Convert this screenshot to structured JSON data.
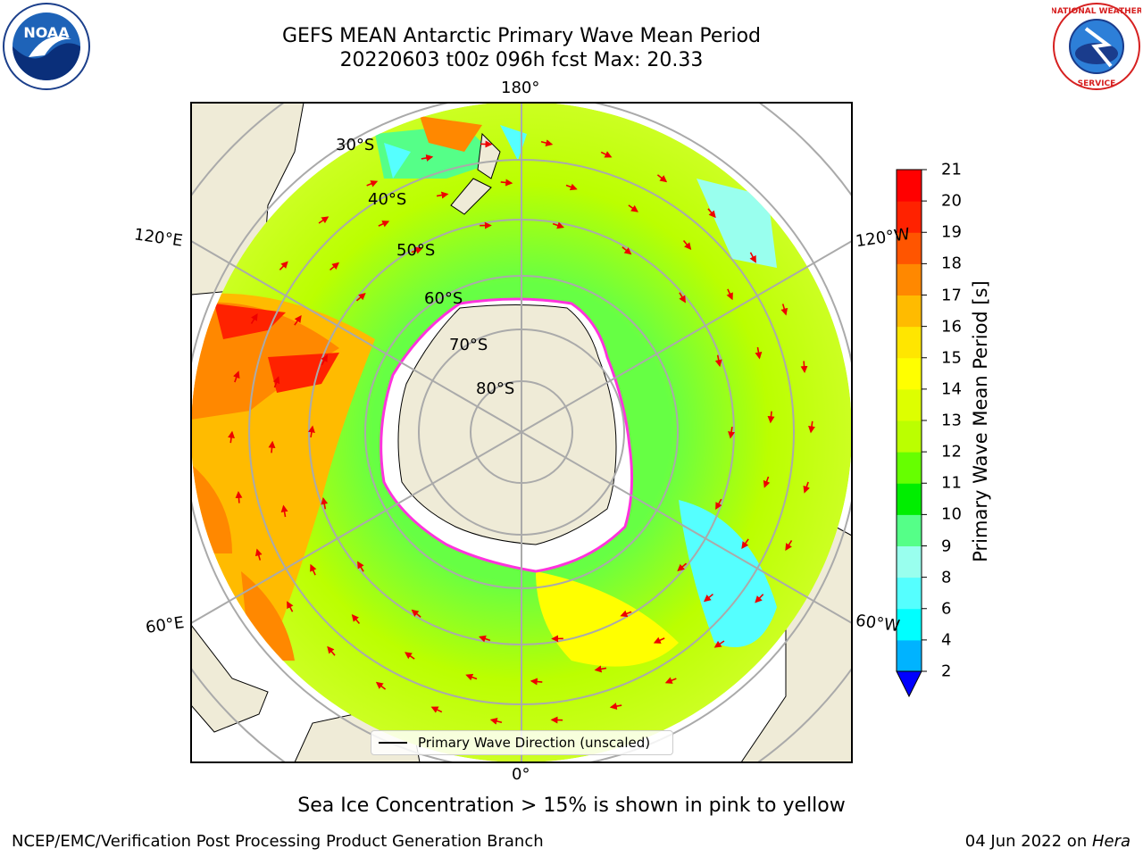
{
  "header": {
    "title_line1": "GEFS MEAN Antarctic Primary Wave Mean Period",
    "title_line2": "20220603 t00z 096h fcst   Max: 20.33"
  },
  "logos": {
    "left": "noaa-logo-icon",
    "right": "nws-logo-icon"
  },
  "map": {
    "projection": "south-polar-stereographic",
    "longitude_labels": [
      "180°",
      "120°E",
      "120°W",
      "60°E",
      "60°W",
      "0°"
    ],
    "latitude_labels": [
      "30°S",
      "40°S",
      "50°S",
      "60°S",
      "70°S",
      "80°S"
    ],
    "legend_label": "Primary Wave Direction (unscaled)",
    "land_color": "#efebd7",
    "ice_edge_color": "#ff33dd",
    "arrow_color": "#ee0000",
    "note": "Sea Ice Concentration > 15% is shown in pink to yellow"
  },
  "colorbar": {
    "title": "Primary Wave Mean Period [s]",
    "ticks": [
      "2",
      "4",
      "6",
      "8",
      "9",
      "10",
      "11",
      "12",
      "13",
      "14",
      "15",
      "16",
      "17",
      "18",
      "19",
      "20",
      "21"
    ],
    "colors": [
      "#0066ff",
      "#00b3ff",
      "#00ffff",
      "#55ffff",
      "#99ffee",
      "#55ff88",
      "#00ee00",
      "#66ff00",
      "#bbff00",
      "#ddff00",
      "#ffff00",
      "#ffe600",
      "#ffbb00",
      "#ff8800",
      "#ff5500",
      "#ff2200",
      "#ff0000"
    ],
    "extend_color": "#0000ff"
  },
  "footer": {
    "left": "NCEP/EMC/Verification Post Processing Product Generation Branch",
    "right_prefix": "04 Jun 2022 on ",
    "right_machine": "Hera"
  }
}
